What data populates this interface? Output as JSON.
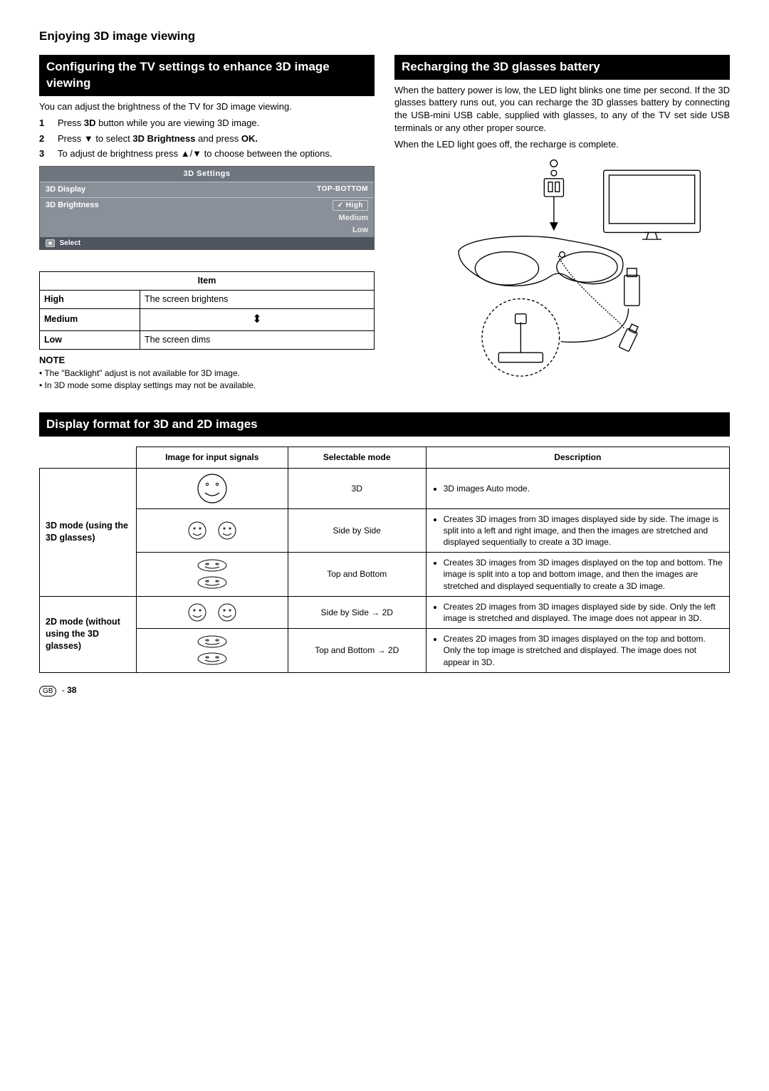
{
  "page": {
    "section_title": "Enjoying 3D image viewing",
    "footer_gb": "GB",
    "footer_num": "38"
  },
  "left": {
    "hbar": "Configuring the TV settings to enhance 3D image viewing",
    "intro": "You can adjust the brightness of the TV for 3D image viewing.",
    "steps": [
      {
        "num": "1",
        "pre": "Press ",
        "bold": "3D",
        "post": " button while you are viewing 3D image."
      },
      {
        "num": "2",
        "raw_html": "Press ▼ to select <b>3D Brightness</b> and press <b>OK.</b>"
      },
      {
        "num": "3",
        "raw_html": "To adjust de brightness press ▲/▼ to choose between the options."
      }
    ],
    "panel": {
      "title": "3D Settings",
      "rows": [
        {
          "k": "3D Display",
          "v": "TOP-BOTTOM"
        },
        {
          "k": "3D Brightness",
          "v": "✓ High",
          "hl": true
        }
      ],
      "subs": [
        "Medium",
        "Low"
      ],
      "footer": "Select"
    },
    "item_header": "Item",
    "items": [
      {
        "k": "High",
        "v": "The screen brightens"
      },
      {
        "k": "Medium",
        "v": "__arrow__"
      },
      {
        "k": "Low",
        "v": "The screen dims"
      }
    ],
    "note_h": "NOTE",
    "notes": [
      "The \"Backlight\" adjust is not available for 3D image.",
      "In 3D mode some display settings may not be available."
    ]
  },
  "right": {
    "hbar": "Recharging the 3D glasses battery",
    "para1": "When the battery power is low, the LED light blinks one time per second. If the 3D glasses battery runs out, you can recharge the 3D glasses battery by connecting the USB-mini USB cable, supplied with glasses, to any of the TV set side USB terminals or any other proper source.",
    "para2": "When the LED light goes off, the recharge is complete."
  },
  "fmt": {
    "hbar": "Display format for 3D and 2D images",
    "headers": [
      "Image for input signals",
      "Selectable mode",
      "Description"
    ],
    "group1": "3D mode (using the 3D glasses)",
    "group2": "2D mode (without using the 3D glasses)",
    "rows": [
      {
        "face": "single",
        "mode": "3D",
        "desc": "3D images Auto mode."
      },
      {
        "face": "sbs",
        "mode": "Side by Side",
        "desc": "Creates 3D images from 3D images displayed side by side. The image is split into a left and right image, and then the images are stretched and displayed sequentially to create a 3D image."
      },
      {
        "face": "tab",
        "mode": "Top and Bottom",
        "desc": "Creates 3D images from 3D images displayed on the top and bottom. The image is split into a top and bottom image, and then the images are stretched and displayed sequentially to create a 3D image."
      },
      {
        "face": "sbs",
        "mode": "Side by Side → 2D",
        "desc": "Creates 2D images from 3D images displayed side by side. Only the left image is stretched and displayed. The image does not appear in 3D."
      },
      {
        "face": "tab",
        "mode": "Top and Bottom → 2D",
        "desc": "Creates 2D images from 3D images displayed on the top and bottom. Only the top image is stretched and displayed. The image does not appear in 3D."
      }
    ]
  }
}
